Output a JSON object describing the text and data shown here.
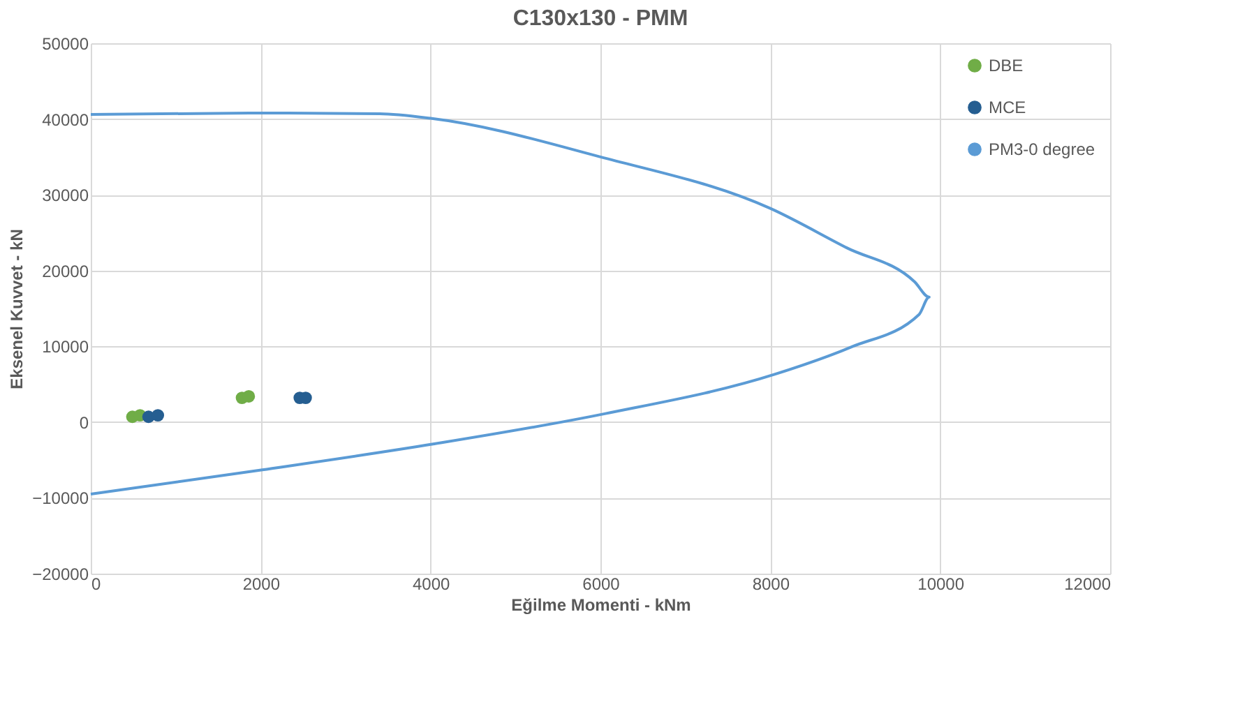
{
  "chart_data": {
    "type": "scatter",
    "title": "C130x130 - PMM",
    "xlabel": "Eğilme Momenti - kNm",
    "ylabel": "Eksenel Kuvvet - kN",
    "xlim": [
      0,
      12000
    ],
    "xticks": [
      0,
      2000,
      4000,
      6000,
      8000,
      10000,
      12000
    ],
    "ylim": [
      -20000,
      50000
    ],
    "yticks": [
      -20000,
      -10000,
      0,
      10000,
      20000,
      30000,
      40000,
      50000
    ],
    "grid": true,
    "legend": "top right",
    "series": [
      {
        "name": "DBE",
        "marker": "circle",
        "color": "#70ad47",
        "x": [
          490,
          580,
          1780,
          1860
        ],
        "values": [
          700,
          900,
          3200,
          3400
        ]
      },
      {
        "name": "MCE",
        "marker": "circle",
        "color": "#255e91",
        "x": [
          680,
          790,
          2460,
          2530
        ],
        "values": [
          700,
          900,
          3200,
          3200
        ]
      },
      {
        "name": "PM3-0 degree",
        "type": "line",
        "marker": "none",
        "line_style": "solid",
        "color": "#5b9bd5",
        "x": [
          0,
          2000,
          3400,
          4000,
          6000,
          8000,
          8900,
          9700,
          9870,
          9750,
          8950,
          8050,
          6050,
          4030,
          2020,
          0
        ],
        "values": [
          40600,
          40800,
          40700,
          40100,
          35000,
          28200,
          23000,
          18500,
          16500,
          14200,
          9900,
          6300,
          1100,
          -2900,
          -6300,
          -9500
        ]
      }
    ]
  }
}
